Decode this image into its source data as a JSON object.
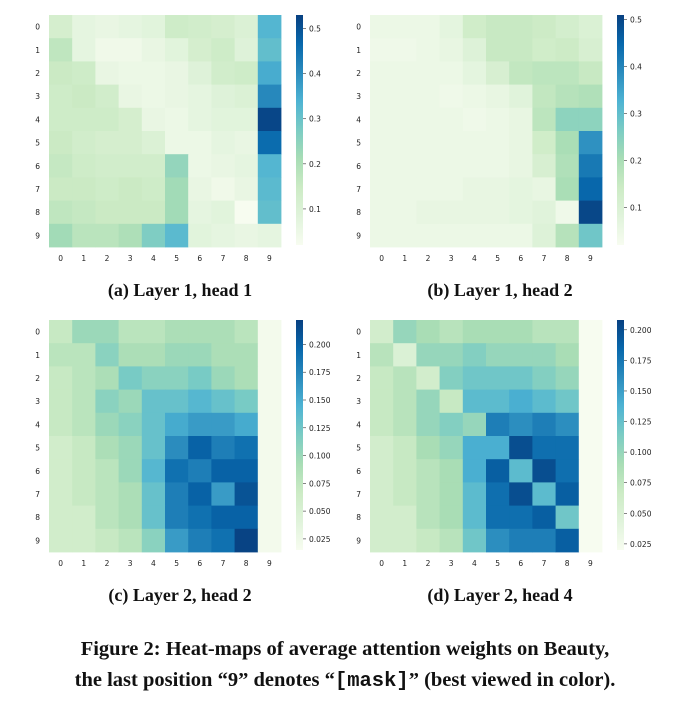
{
  "figure": {
    "caption_prefix": "Figure 2: Heat-maps of average attention weights on Beauty,",
    "caption_line2_a": "the last position “9” denotes “",
    "caption_line2_mono": "[mask]",
    "caption_line2_b": "” (best viewed in color)."
  },
  "colors": {
    "scale": [
      "#f7fcf0",
      "#e0f3db",
      "#ccebc5",
      "#a8ddb5",
      "#7bccc4",
      "#4eb3d3",
      "#2b8cbe",
      "#0868ac",
      "#084081"
    ]
  },
  "chart_data": [
    {
      "type": "heatmap",
      "title": "(a) Layer 1, head 1",
      "x_ticks": [
        "0",
        "1",
        "2",
        "3",
        "4",
        "5",
        "6",
        "7",
        "8",
        "9"
      ],
      "y_ticks": [
        "0",
        "1",
        "2",
        "3",
        "4",
        "5",
        "6",
        "7",
        "8",
        "9"
      ],
      "vmin": 0.02,
      "vmax": 0.53,
      "colorbar_ticks": [
        0.1,
        0.2,
        0.3,
        0.4,
        0.5
      ],
      "colorbar_labels": [
        "0.1",
        "0.2",
        "0.3",
        "0.4",
        "0.5"
      ],
      "values": [
        [
          0.12,
          0.07,
          0.06,
          0.07,
          0.08,
          0.14,
          0.13,
          0.12,
          0.1,
          0.33
        ],
        [
          0.17,
          0.07,
          0.04,
          0.04,
          0.06,
          0.08,
          0.12,
          0.14,
          0.09,
          0.31
        ],
        [
          0.15,
          0.14,
          0.06,
          0.05,
          0.05,
          0.06,
          0.09,
          0.13,
          0.14,
          0.35
        ],
        [
          0.14,
          0.15,
          0.13,
          0.06,
          0.05,
          0.06,
          0.07,
          0.09,
          0.1,
          0.41
        ],
        [
          0.14,
          0.14,
          0.14,
          0.12,
          0.06,
          0.05,
          0.07,
          0.08,
          0.08,
          0.52
        ],
        [
          0.15,
          0.13,
          0.12,
          0.12,
          0.1,
          0.05,
          0.05,
          0.07,
          0.06,
          0.46
        ],
        [
          0.16,
          0.14,
          0.13,
          0.13,
          0.13,
          0.24,
          0.05,
          0.06,
          0.07,
          0.33
        ],
        [
          0.15,
          0.15,
          0.14,
          0.15,
          0.14,
          0.22,
          0.06,
          0.04,
          0.06,
          0.32
        ],
        [
          0.17,
          0.16,
          0.15,
          0.15,
          0.15,
          0.22,
          0.07,
          0.08,
          0.02,
          0.31
        ],
        [
          0.22,
          0.18,
          0.18,
          0.2,
          0.27,
          0.32,
          0.08,
          0.07,
          0.06,
          0.07
        ]
      ]
    },
    {
      "type": "heatmap",
      "title": "(b) Layer 1, head 2",
      "x_ticks": [
        "0",
        "1",
        "2",
        "3",
        "4",
        "5",
        "6",
        "7",
        "8",
        "9"
      ],
      "y_ticks": [
        "0",
        "1",
        "2",
        "3",
        "4",
        "5",
        "6",
        "7",
        "8",
        "9"
      ],
      "vmin": 0.02,
      "vmax": 0.51,
      "colorbar_ticks": [
        0.1,
        0.2,
        0.3,
        0.4,
        0.5
      ],
      "colorbar_labels": [
        "0.1",
        "0.2",
        "0.3",
        "0.4",
        "0.5"
      ],
      "values": [
        [
          0.05,
          0.05,
          0.05,
          0.07,
          0.13,
          0.15,
          0.15,
          0.14,
          0.12,
          0.1
        ],
        [
          0.04,
          0.04,
          0.05,
          0.06,
          0.09,
          0.15,
          0.15,
          0.13,
          0.14,
          0.11
        ],
        [
          0.05,
          0.05,
          0.05,
          0.05,
          0.07,
          0.11,
          0.16,
          0.17,
          0.17,
          0.15
        ],
        [
          0.05,
          0.05,
          0.05,
          0.04,
          0.05,
          0.06,
          0.08,
          0.16,
          0.18,
          0.19
        ],
        [
          0.05,
          0.05,
          0.05,
          0.05,
          0.04,
          0.05,
          0.06,
          0.17,
          0.24,
          0.24
        ],
        [
          0.05,
          0.05,
          0.05,
          0.05,
          0.05,
          0.05,
          0.06,
          0.13,
          0.2,
          0.38
        ],
        [
          0.05,
          0.05,
          0.05,
          0.05,
          0.05,
          0.05,
          0.06,
          0.11,
          0.19,
          0.42
        ],
        [
          0.05,
          0.05,
          0.05,
          0.05,
          0.06,
          0.06,
          0.07,
          0.06,
          0.2,
          0.45
        ],
        [
          0.05,
          0.05,
          0.06,
          0.06,
          0.06,
          0.06,
          0.07,
          0.08,
          0.04,
          0.5
        ],
        [
          0.05,
          0.05,
          0.05,
          0.05,
          0.05,
          0.05,
          0.05,
          0.09,
          0.18,
          0.28
        ]
      ]
    },
    {
      "type": "heatmap",
      "title": "(c) Layer 2, head 2",
      "x_ticks": [
        "0",
        "1",
        "2",
        "3",
        "4",
        "5",
        "6",
        "7",
        "8",
        "9"
      ],
      "y_ticks": [
        "0",
        "1",
        "2",
        "3",
        "4",
        "5",
        "6",
        "7",
        "8",
        "9"
      ],
      "vmin": 0.015,
      "vmax": 0.222,
      "colorbar_ticks": [
        0.025,
        0.05,
        0.075,
        0.1,
        0.125,
        0.15,
        0.175,
        0.2
      ],
      "colorbar_labels": [
        "0.025",
        "0.050",
        "0.075",
        "0.100",
        "0.125",
        "0.150",
        "0.175",
        "0.200"
      ],
      "values": [
        [
          0.07,
          0.1,
          0.1,
          0.08,
          0.08,
          0.09,
          0.09,
          0.09,
          0.08,
          0.02
        ],
        [
          0.08,
          0.08,
          0.11,
          0.09,
          0.09,
          0.1,
          0.1,
          0.09,
          0.09,
          0.02
        ],
        [
          0.07,
          0.08,
          0.09,
          0.12,
          0.11,
          0.11,
          0.12,
          0.1,
          0.09,
          0.02
        ],
        [
          0.07,
          0.08,
          0.11,
          0.1,
          0.13,
          0.13,
          0.14,
          0.13,
          0.12,
          0.02
        ],
        [
          0.07,
          0.08,
          0.1,
          0.11,
          0.13,
          0.15,
          0.16,
          0.16,
          0.15,
          0.02
        ],
        [
          0.06,
          0.07,
          0.09,
          0.1,
          0.13,
          0.17,
          0.2,
          0.18,
          0.19,
          0.02
        ],
        [
          0.06,
          0.07,
          0.08,
          0.1,
          0.14,
          0.19,
          0.18,
          0.2,
          0.2,
          0.02
        ],
        [
          0.06,
          0.07,
          0.08,
          0.09,
          0.13,
          0.18,
          0.2,
          0.16,
          0.21,
          0.02
        ],
        [
          0.06,
          0.06,
          0.08,
          0.09,
          0.13,
          0.18,
          0.19,
          0.2,
          0.2,
          0.02
        ],
        [
          0.06,
          0.06,
          0.07,
          0.08,
          0.11,
          0.16,
          0.18,
          0.19,
          0.22,
          0.02
        ]
      ]
    },
    {
      "type": "heatmap",
      "title": "(d) Layer 2, head 4",
      "x_ticks": [
        "0",
        "1",
        "2",
        "3",
        "4",
        "5",
        "6",
        "7",
        "8",
        "9"
      ],
      "y_ticks": [
        "0",
        "1",
        "2",
        "3",
        "4",
        "5",
        "6",
        "7",
        "8",
        "9"
      ],
      "vmin": 0.02,
      "vmax": 0.208,
      "colorbar_ticks": [
        0.025,
        0.05,
        0.075,
        0.1,
        0.125,
        0.15,
        0.175,
        0.2
      ],
      "colorbar_labels": [
        "0.025",
        "0.050",
        "0.075",
        "0.100",
        "0.125",
        "0.150",
        "0.175",
        "0.200"
      ],
      "values": [
        [
          0.06,
          0.1,
          0.09,
          0.08,
          0.09,
          0.09,
          0.09,
          0.08,
          0.08,
          0.02
        ],
        [
          0.08,
          0.05,
          0.1,
          0.1,
          0.11,
          0.1,
          0.1,
          0.1,
          0.09,
          0.02
        ],
        [
          0.07,
          0.08,
          0.06,
          0.11,
          0.12,
          0.12,
          0.12,
          0.11,
          0.1,
          0.02
        ],
        [
          0.07,
          0.08,
          0.1,
          0.07,
          0.13,
          0.13,
          0.14,
          0.13,
          0.12,
          0.02
        ],
        [
          0.07,
          0.08,
          0.1,
          0.11,
          0.1,
          0.17,
          0.16,
          0.17,
          0.16,
          0.02
        ],
        [
          0.06,
          0.07,
          0.09,
          0.1,
          0.14,
          0.14,
          0.2,
          0.18,
          0.18,
          0.02
        ],
        [
          0.06,
          0.07,
          0.08,
          0.09,
          0.14,
          0.19,
          0.13,
          0.2,
          0.18,
          0.02
        ],
        [
          0.06,
          0.07,
          0.08,
          0.09,
          0.13,
          0.18,
          0.2,
          0.13,
          0.19,
          0.02
        ],
        [
          0.06,
          0.06,
          0.08,
          0.09,
          0.13,
          0.18,
          0.18,
          0.19,
          0.12,
          0.02
        ],
        [
          0.06,
          0.06,
          0.07,
          0.08,
          0.12,
          0.16,
          0.17,
          0.17,
          0.19,
          0.02
        ]
      ]
    }
  ]
}
